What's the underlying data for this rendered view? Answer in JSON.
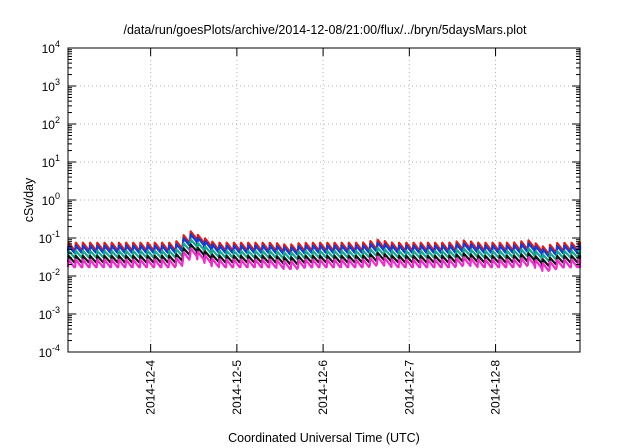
{
  "chart_data": {
    "type": "line",
    "title": "/data/run/goesPlots/archive/2014-12-08/21:00/flux/../bryn/5daysMars.plot",
    "xlabel": "Coordinated Universal Time (UTC)",
    "ylabel": "cSv/day",
    "yscale": "log",
    "ylim": [
      0.0001,
      10000
    ],
    "y_ticks": [
      {
        "mant": "10",
        "exp": "-4",
        "value": 0.0001
      },
      {
        "mant": "10",
        "exp": "-3",
        "value": 0.001
      },
      {
        "mant": "10",
        "exp": "-2",
        "value": 0.01
      },
      {
        "mant": "10",
        "exp": "-1",
        "value": 0.1
      },
      {
        "mant": "10",
        "exp": "0",
        "value": 1
      },
      {
        "mant": "10",
        "exp": "1",
        "value": 10
      },
      {
        "mant": "10",
        "exp": "2",
        "value": 100
      },
      {
        "mant": "10",
        "exp": "3",
        "value": 1000
      },
      {
        "mant": "10",
        "exp": "4",
        "value": 10000
      }
    ],
    "xlim": [
      "2014-12-03T01:00",
      "2014-12-08T23:30"
    ],
    "x_ticks": [
      "2014-12-4",
      "2014-12-5",
      "2014-12-6",
      "2014-12-7",
      "2014-12-8"
    ],
    "grid": true,
    "pattern": "sawtooth, period ~2h (rapid rise then decay)",
    "series": [
      {
        "color": "#e41a1c",
        "peak": 0.075,
        "trough": 0.048
      },
      {
        "color": "#0b3fd6",
        "peak": 0.063,
        "trough": 0.041
      },
      {
        "color": "#1aa590",
        "peak": 0.046,
        "trough": 0.031
      },
      {
        "color": "#111111",
        "peak": 0.034,
        "trough": 0.023
      },
      {
        "color": "#ee2ec9",
        "peak": 0.027,
        "trough": 0.017
      }
    ]
  }
}
